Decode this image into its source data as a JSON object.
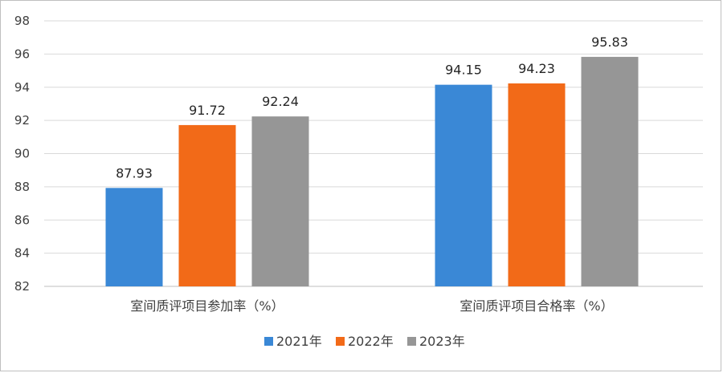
{
  "chart_data": {
    "type": "bar",
    "title": "",
    "xlabel": "",
    "ylabel": "",
    "ylim": [
      82,
      98
    ],
    "yticks": [
      82,
      84,
      86,
      88,
      90,
      92,
      94,
      96,
      98
    ],
    "grid": true,
    "legend_position": "bottom",
    "categories": [
      "室间质评项目参加率（%）",
      "室间质评项目合格率（%）"
    ],
    "series": [
      {
        "name": "2021年",
        "color": "#3a88d6",
        "values": [
          87.93,
          94.15
        ],
        "labels": [
          "87.93",
          "94.15"
        ]
      },
      {
        "name": "2022年",
        "color": "#f26a18",
        "values": [
          91.72,
          94.23
        ],
        "labels": [
          "91.72",
          "94.23"
        ]
      },
      {
        "name": "2023年",
        "color": "#969696",
        "values": [
          92.24,
          95.83
        ],
        "labels": [
          "92.24",
          "95.83"
        ]
      }
    ]
  }
}
